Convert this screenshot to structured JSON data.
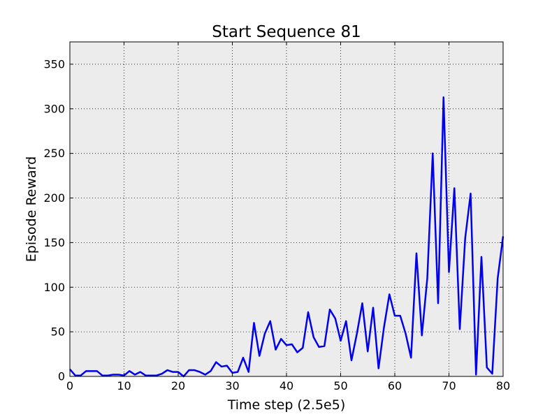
{
  "chart_data": {
    "type": "line",
    "title": "Start Sequence 81",
    "xlabel": "Time step (2.5e5)",
    "ylabel": "Episode Reward",
    "xlim": [
      0,
      80
    ],
    "ylim": [
      0,
      375
    ],
    "xticks": [
      0,
      10,
      20,
      30,
      40,
      50,
      60,
      70,
      80
    ],
    "yticks": [
      0,
      50,
      100,
      150,
      200,
      250,
      300,
      350
    ],
    "grid": true,
    "background": "#ececec",
    "line_color": "#0000ee",
    "series": [
      {
        "x": [
          0,
          1,
          2,
          3,
          4,
          5,
          6,
          7,
          8,
          9,
          10,
          11,
          12,
          13,
          14,
          15,
          16,
          17,
          18,
          19,
          20,
          21,
          22,
          23,
          24,
          25,
          26,
          27,
          28,
          29,
          30,
          31,
          32,
          33,
          34,
          35,
          36,
          37,
          38,
          39,
          40,
          41,
          42,
          43,
          44,
          45,
          46,
          47,
          48,
          49,
          50,
          51,
          52,
          53,
          54,
          55,
          56,
          57,
          58,
          59,
          60,
          61,
          62,
          63,
          64,
          65,
          66,
          67,
          68,
          69,
          70,
          71,
          72,
          73,
          74,
          75,
          76,
          77,
          78,
          79,
          80
        ],
        "values": [
          8,
          1,
          1,
          6,
          6,
          6,
          1,
          1,
          2,
          2,
          1,
          6,
          2,
          5,
          1,
          1,
          1,
          3,
          7,
          5,
          5,
          0,
          7,
          7,
          5,
          2,
          6,
          16,
          11,
          12,
          4,
          5,
          21,
          5,
          60,
          23,
          48,
          62,
          30,
          42,
          35,
          36,
          27,
          32,
          72,
          44,
          33,
          34,
          75,
          65,
          40,
          62,
          18,
          48,
          82,
          28,
          77,
          9,
          55,
          92,
          68,
          68,
          48,
          21,
          138,
          46,
          110,
          250,
          82,
          313,
          117,
          211,
          53,
          155,
          205,
          2,
          134,
          10,
          3,
          110,
          157
        ]
      }
    ]
  }
}
